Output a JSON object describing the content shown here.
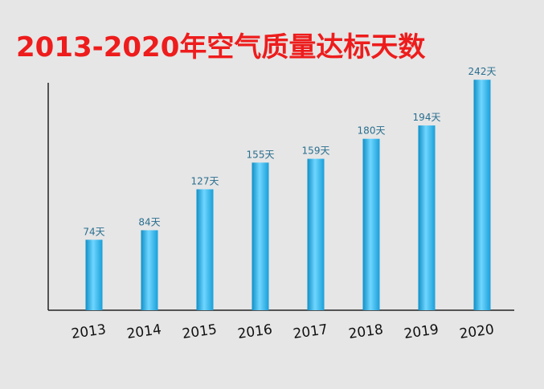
{
  "chart_data": {
    "type": "bar",
    "title": "2013-2020年空气质量达标天数",
    "categories": [
      "2013",
      "2014",
      "2015",
      "2016",
      "2017",
      "2018",
      "2019",
      "2020"
    ],
    "values": [
      74,
      84,
      127,
      155,
      159,
      180,
      194,
      242
    ],
    "value_labels": [
      "74天",
      "84天",
      "127天",
      "155天",
      "159天",
      "180天",
      "194天",
      "242天"
    ],
    "xlabel": "",
    "ylabel": "",
    "ylim": [
      0,
      250
    ],
    "grid": false,
    "legend": "none",
    "bar_color": "#29b4e8"
  }
}
